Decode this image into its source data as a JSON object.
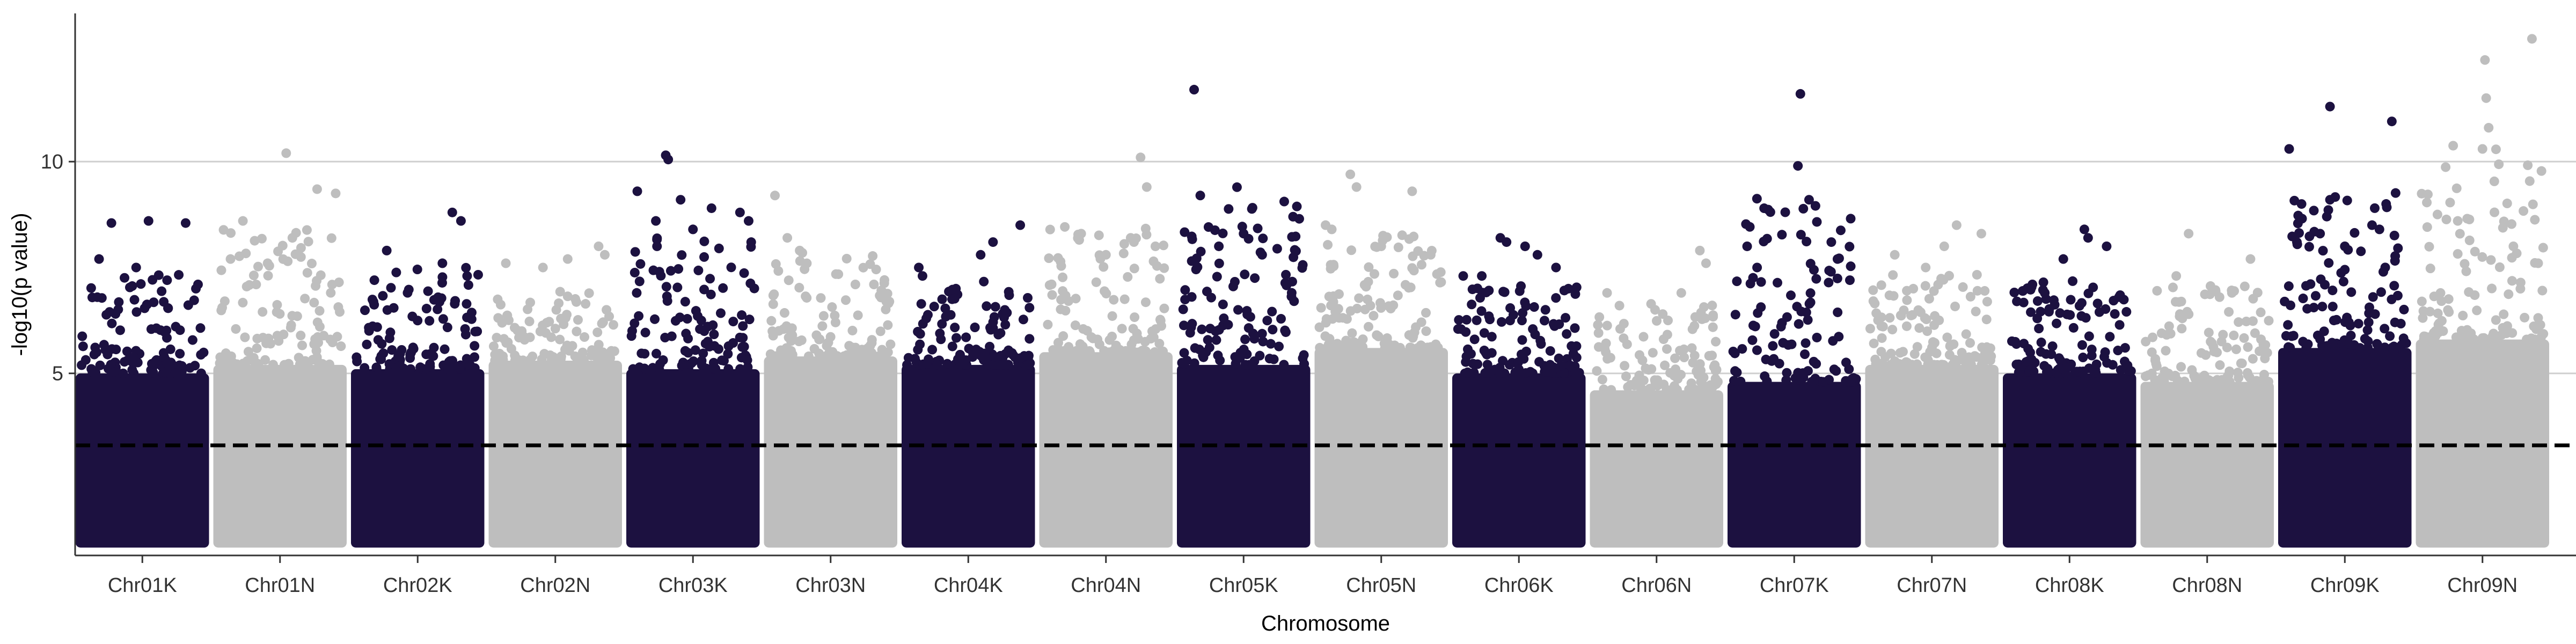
{
  "chart_data": {
    "type": "scatter",
    "subtype": "manhattan",
    "title": "",
    "xlabel": "Chromosome",
    "ylabel": "-log10(p value)",
    "ylim": [
      0.7,
      13.5
    ],
    "yticks": [
      5,
      10
    ],
    "grid": "horizontal major lines",
    "threshold": {
      "value": 3.3,
      "style": "dashed",
      "color": "#000000"
    },
    "colors": {
      "dark": "#1c1140",
      "light": "#bebebe"
    },
    "point_floor": 1.0,
    "chromosomes": [
      {
        "label": "Chr01K",
        "color": "dark",
        "dense_top": 5.0,
        "max": 8.6,
        "peaks": [
          [
            0.25,
            8.55
          ],
          [
            0.55,
            8.6
          ],
          [
            0.85,
            8.55
          ],
          [
            0.15,
            7.7
          ],
          [
            0.45,
            7.5
          ],
          [
            0.7,
            7.2
          ],
          [
            0.95,
            7.1
          ]
        ]
      },
      {
        "label": "Chr01N",
        "color": "light",
        "dense_top": 5.2,
        "max": 10.2,
        "peaks": [
          [
            0.55,
            10.2
          ],
          [
            0.8,
            9.35
          ],
          [
            0.95,
            9.25
          ],
          [
            0.2,
            8.6
          ],
          [
            0.6,
            8.2
          ],
          [
            0.1,
            7.7
          ],
          [
            0.4,
            7.6
          ]
        ]
      },
      {
        "label": "Chr02K",
        "color": "dark",
        "dense_top": 5.1,
        "max": 8.8,
        "peaks": [
          [
            0.78,
            8.8
          ],
          [
            0.85,
            8.6
          ],
          [
            0.25,
            7.9
          ],
          [
            0.7,
            7.6
          ],
          [
            0.9,
            7.3
          ],
          [
            0.15,
            7.2
          ]
        ]
      },
      {
        "label": "Chr02N",
        "color": "light",
        "dense_top": 5.3,
        "max": 8.0,
        "peaks": [
          [
            0.85,
            8.0
          ],
          [
            0.9,
            7.8
          ],
          [
            0.4,
            7.5
          ],
          [
            0.6,
            7.7
          ],
          [
            0.1,
            7.6
          ]
        ]
      },
      {
        "label": "Chr03K",
        "color": "dark",
        "dense_top": 5.1,
        "max": 10.15,
        "peaks": [
          [
            0.28,
            10.15
          ],
          [
            0.3,
            10.05
          ],
          [
            0.05,
            9.3
          ],
          [
            0.4,
            9.1
          ],
          [
            0.65,
            8.9
          ],
          [
            0.88,
            8.8
          ],
          [
            0.95,
            8.6
          ],
          [
            0.2,
            8.6
          ],
          [
            0.5,
            8.4
          ]
        ]
      },
      {
        "label": "Chr03N",
        "color": "light",
        "dense_top": 5.4,
        "max": 9.2,
        "peaks": [
          [
            0.05,
            9.2
          ],
          [
            0.15,
            8.2
          ],
          [
            0.25,
            7.9
          ],
          [
            0.7,
            7.1
          ],
          [
            0.85,
            7.1
          ]
        ]
      },
      {
        "label": "Chr04K",
        "color": "dark",
        "dense_top": 5.2,
        "max": 8.5,
        "peaks": [
          [
            0.92,
            8.5
          ],
          [
            0.7,
            8.1
          ],
          [
            0.6,
            7.8
          ],
          [
            0.1,
            7.5
          ],
          [
            0.13,
            7.3
          ],
          [
            0.4,
            7.0
          ]
        ]
      },
      {
        "label": "Chr04N",
        "color": "light",
        "dense_top": 5.5,
        "max": 10.1,
        "peaks": [
          [
            0.78,
            10.1
          ],
          [
            0.83,
            9.4
          ],
          [
            0.3,
            8.3
          ],
          [
            0.7,
            8.2
          ],
          [
            0.9,
            8.0
          ],
          [
            0.5,
            7.8
          ]
        ]
      },
      {
        "label": "Chr05K",
        "color": "dark",
        "dense_top": 5.2,
        "max": 11.7,
        "peaks": [
          [
            0.1,
            11.7
          ],
          [
            0.15,
            9.2
          ],
          [
            0.9,
            8.7
          ],
          [
            0.95,
            8.65
          ],
          [
            0.5,
            8.3
          ],
          [
            0.3,
            8.0
          ],
          [
            0.65,
            7.8
          ]
        ]
      },
      {
        "label": "Chr05N",
        "color": "light",
        "dense_top": 5.6,
        "max": 9.7,
        "peaks": [
          [
            0.25,
            9.7
          ],
          [
            0.3,
            9.4
          ],
          [
            0.75,
            9.3
          ],
          [
            0.05,
            8.5
          ],
          [
            0.1,
            8.4
          ],
          [
            0.5,
            8.0
          ],
          [
            0.9,
            7.8
          ]
        ]
      },
      {
        "label": "Chr06K",
        "color": "dark",
        "dense_top": 5.0,
        "max": 8.2,
        "peaks": [
          [
            0.35,
            8.2
          ],
          [
            0.4,
            8.1
          ],
          [
            0.55,
            8.0
          ],
          [
            0.65,
            7.8
          ],
          [
            0.8,
            7.5
          ],
          [
            0.05,
            7.3
          ],
          [
            0.2,
            7.3
          ],
          [
            0.9,
            7.0
          ]
        ]
      },
      {
        "label": "Chr06N",
        "color": "light",
        "dense_top": 4.6,
        "max": 7.9,
        "peaks": [
          [
            0.85,
            7.9
          ],
          [
            0.9,
            7.6
          ],
          [
            0.1,
            6.9
          ],
          [
            0.2,
            6.6
          ],
          [
            0.55,
            6.4
          ],
          [
            0.7,
            6.9
          ]
        ]
      },
      {
        "label": "Chr07K",
        "color": "dark",
        "dense_top": 4.8,
        "max": 11.6,
        "peaks": [
          [
            0.55,
            11.6
          ],
          [
            0.53,
            9.9
          ],
          [
            0.62,
            9.1
          ],
          [
            0.8,
            8.1
          ],
          [
            0.85,
            7.7
          ],
          [
            0.2,
            7.5
          ],
          [
            0.95,
            7.2
          ]
        ]
      },
      {
        "label": "Chr07N",
        "color": "light",
        "dense_top": 5.2,
        "max": 8.5,
        "peaks": [
          [
            0.7,
            8.5
          ],
          [
            0.9,
            8.3
          ],
          [
            0.6,
            8.0
          ],
          [
            0.2,
            7.8
          ],
          [
            0.45,
            7.5
          ],
          [
            0.35,
            7.0
          ]
        ]
      },
      {
        "label": "Chr08K",
        "color": "dark",
        "dense_top": 5.0,
        "max": 8.4,
        "peaks": [
          [
            0.62,
            8.4
          ],
          [
            0.65,
            8.2
          ],
          [
            0.8,
            8.0
          ],
          [
            0.45,
            7.7
          ],
          [
            0.2,
            7.1
          ],
          [
            0.3,
            6.9
          ],
          [
            0.9,
            6.8
          ]
        ]
      },
      {
        "label": "Chr08N",
        "color": "light",
        "dense_top": 4.8,
        "max": 8.3,
        "peaks": [
          [
            0.35,
            8.3
          ],
          [
            0.85,
            7.7
          ],
          [
            0.25,
            7.3
          ],
          [
            0.6,
            6.8
          ],
          [
            0.7,
            6.9
          ]
        ]
      },
      {
        "label": "Chr09K",
        "color": "dark",
        "dense_top": 5.6,
        "max": 11.3,
        "peaks": [
          [
            0.38,
            11.3
          ],
          [
            0.88,
            10.95
          ],
          [
            0.05,
            10.3
          ],
          [
            0.15,
            9.0
          ],
          [
            0.38,
            9.1
          ],
          [
            0.72,
            8.5
          ],
          [
            0.78,
            8.4
          ],
          [
            0.3,
            8.3
          ],
          [
            0.5,
            8.0
          ]
        ]
      },
      {
        "label": "Chr09N",
        "color": "light",
        "dense_top": 5.8,
        "max": 12.9,
        "peaks": [
          [
            0.9,
            12.9
          ],
          [
            0.52,
            12.4
          ],
          [
            0.53,
            11.5
          ],
          [
            0.55,
            10.8
          ],
          [
            0.5,
            10.3
          ],
          [
            0.3,
            8.6
          ],
          [
            0.75,
            8.0
          ],
          [
            0.95,
            7.6
          ]
        ]
      }
    ]
  }
}
